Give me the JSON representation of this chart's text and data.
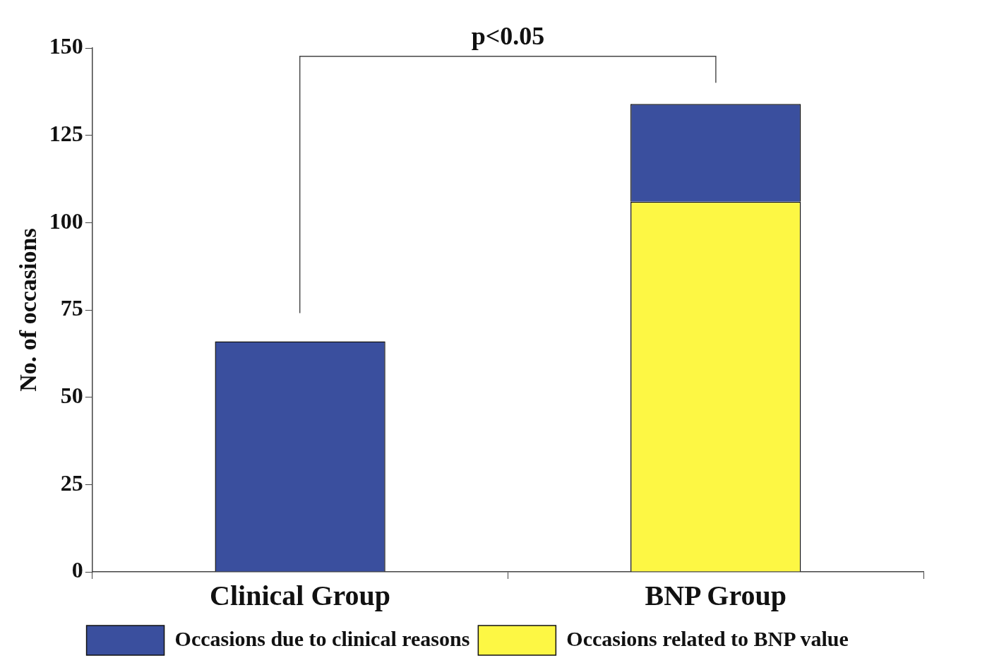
{
  "chart_data": {
    "type": "bar",
    "stacked": true,
    "categories": [
      "Clinical Group",
      "BNP Group"
    ],
    "series": [
      {
        "name": "Occasions related to BNP value",
        "color": "#fdf744",
        "values": [
          null,
          106
        ]
      },
      {
        "name": "Occasions due to clinical reasons",
        "color": "#3a4f9e",
        "values": [
          66,
          28
        ]
      }
    ],
    "ylabel": "No. of occasions",
    "ylim": [
      0,
      150
    ],
    "yticks": [
      0,
      25,
      50,
      75,
      100,
      125,
      150
    ],
    "grid": false,
    "legend": "bottom",
    "annotations": [
      "p<0.05"
    ]
  }
}
